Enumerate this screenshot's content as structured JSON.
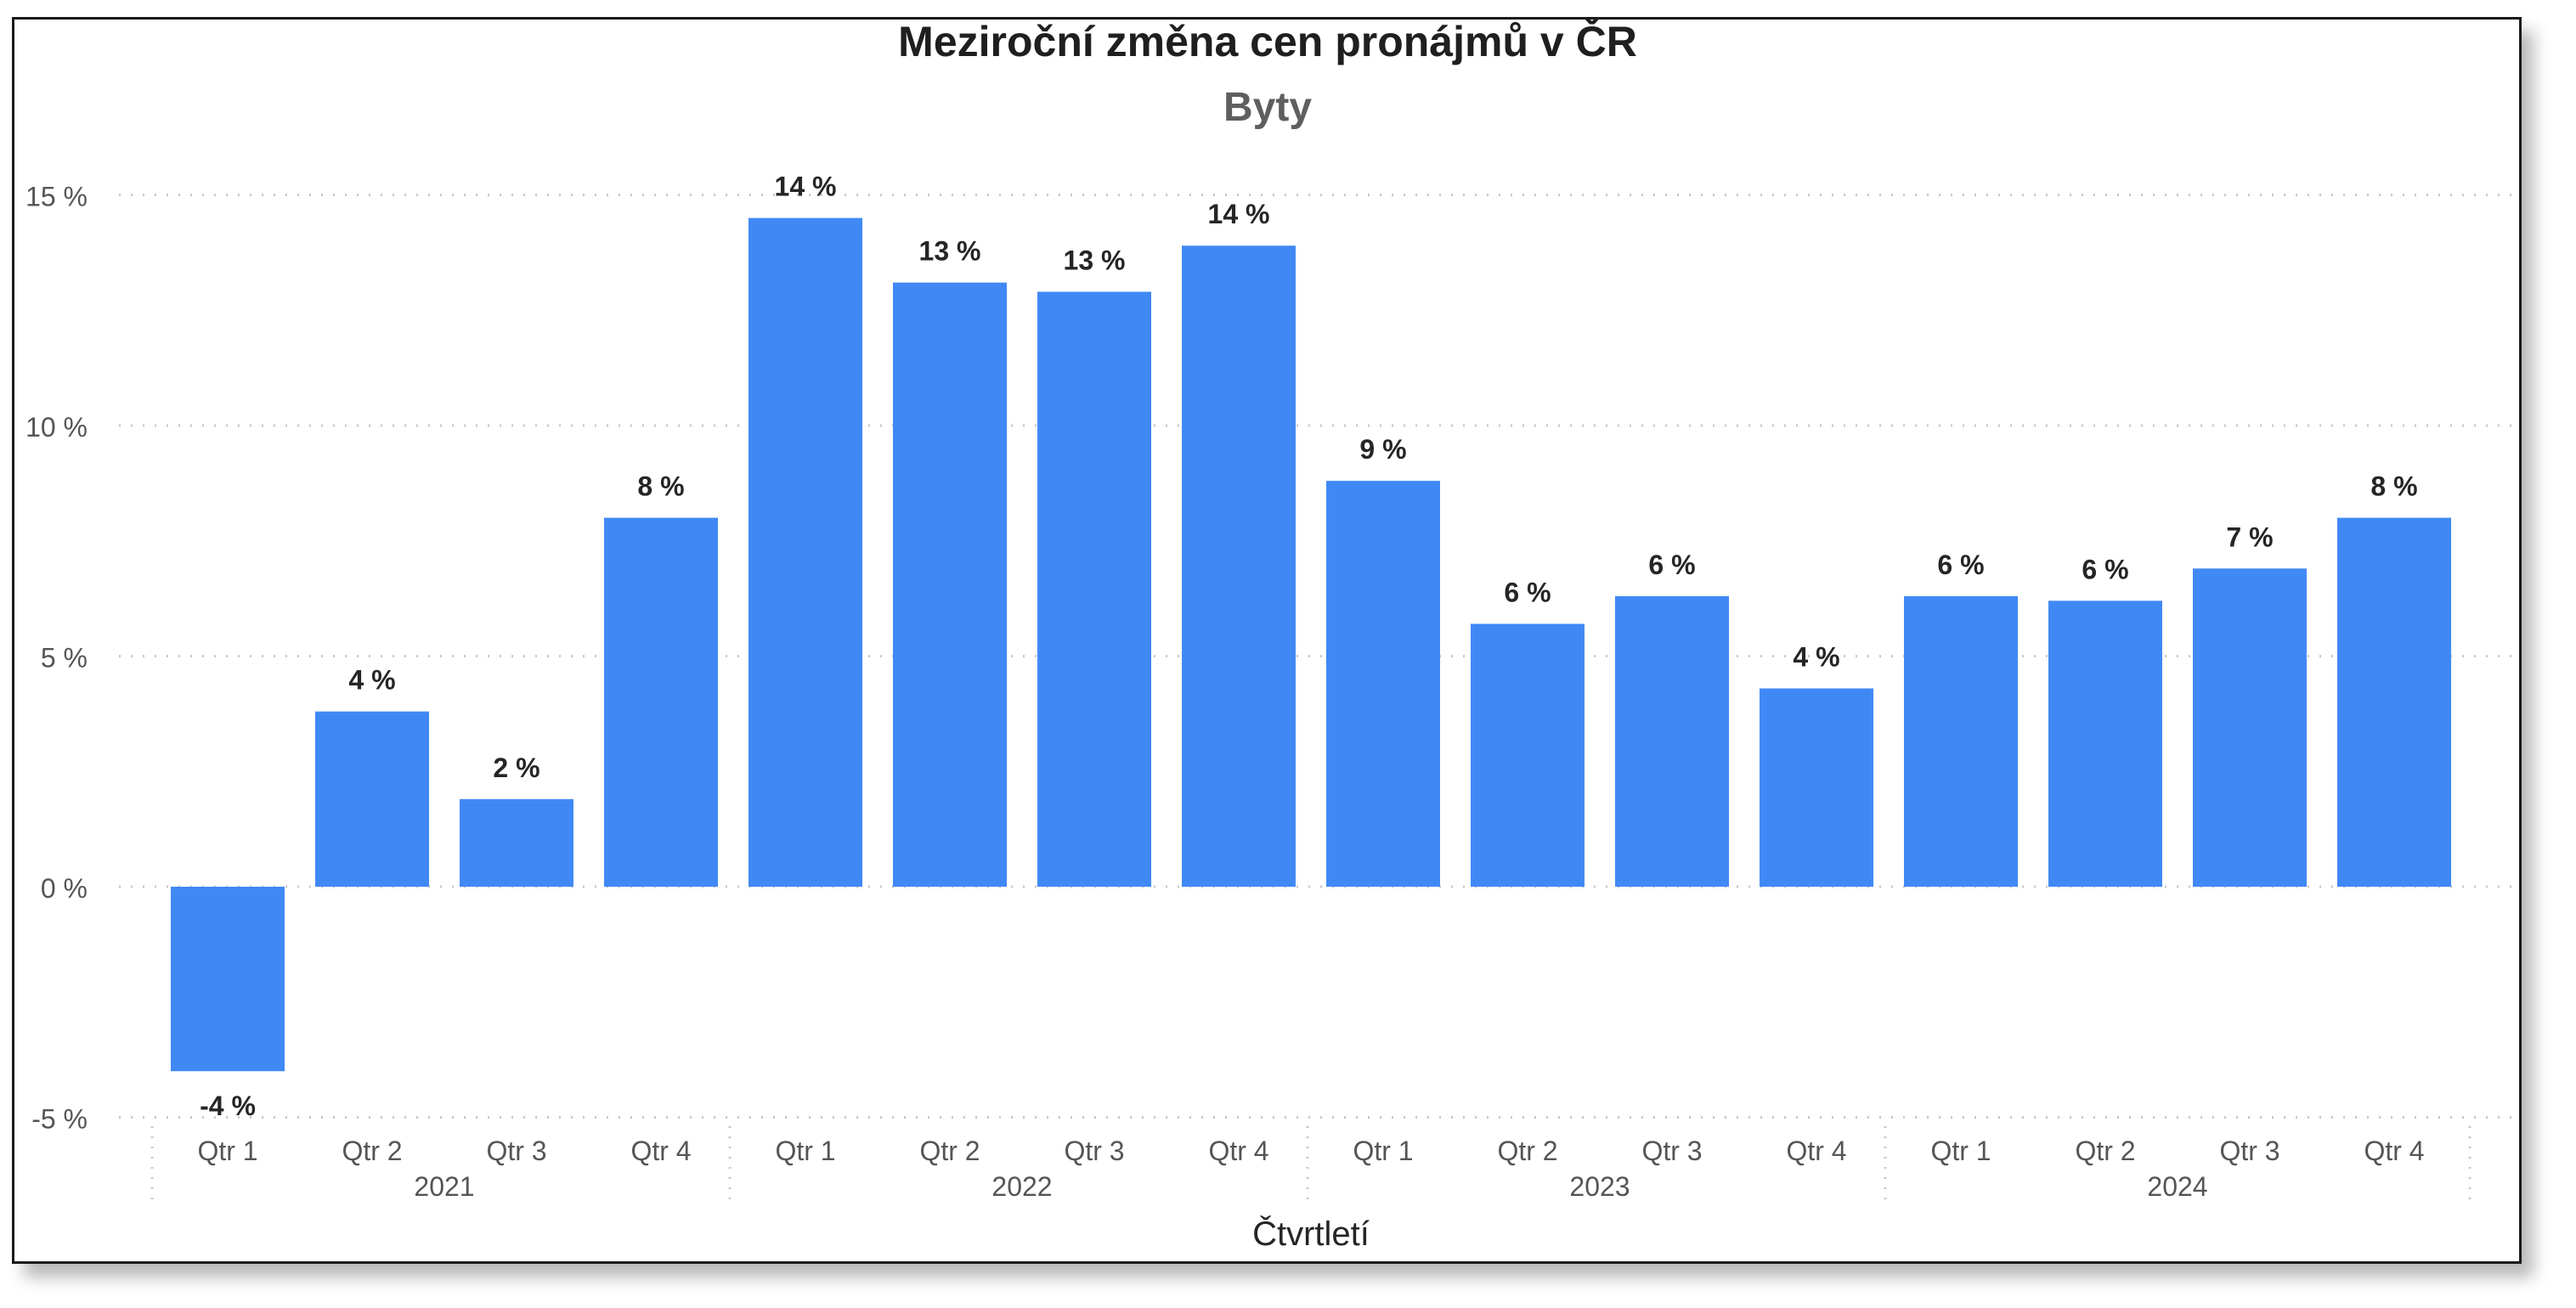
{
  "chart_data": {
    "type": "bar",
    "title": "Meziroční změna cen pronájmů v ČR",
    "subtitle": "Byty",
    "xlabel": "Čtvrtletí",
    "ylabel": "",
    "ylim": [
      -5,
      15
    ],
    "yticks": [
      15,
      10,
      5,
      0,
      -5
    ],
    "ytick_labels": [
      "15 %",
      "10 %",
      "5 %",
      "0 %",
      "-5 %"
    ],
    "grid": true,
    "bar_color": "#4089F5",
    "groups": [
      {
        "label": "2021",
        "categories": [
          "Qtr 1",
          "Qtr 2",
          "Qtr 3",
          "Qtr 4"
        ]
      },
      {
        "label": "2022",
        "categories": [
          "Qtr 1",
          "Qtr 2",
          "Qtr 3",
          "Qtr 4"
        ]
      },
      {
        "label": "2023",
        "categories": [
          "Qtr 1",
          "Qtr 2",
          "Qtr 3",
          "Qtr 4"
        ]
      },
      {
        "label": "2024",
        "categories": [
          "Qtr 1",
          "Qtr 2",
          "Qtr 3",
          "Qtr 4"
        ]
      }
    ],
    "values": [
      -4.0,
      3.8,
      1.9,
      8.0,
      14.5,
      13.1,
      12.9,
      13.9,
      8.8,
      5.7,
      6.3,
      4.3,
      6.3,
      6.2,
      6.9,
      8.0
    ],
    "data_labels": [
      "-4 %",
      "4 %",
      "2 %",
      "8 %",
      "14 %",
      "13 %",
      "13 %",
      "14 %",
      "9 %",
      "6 %",
      "6 %",
      "4 %",
      "6 %",
      "6 %",
      "7 %",
      "8 %"
    ]
  }
}
